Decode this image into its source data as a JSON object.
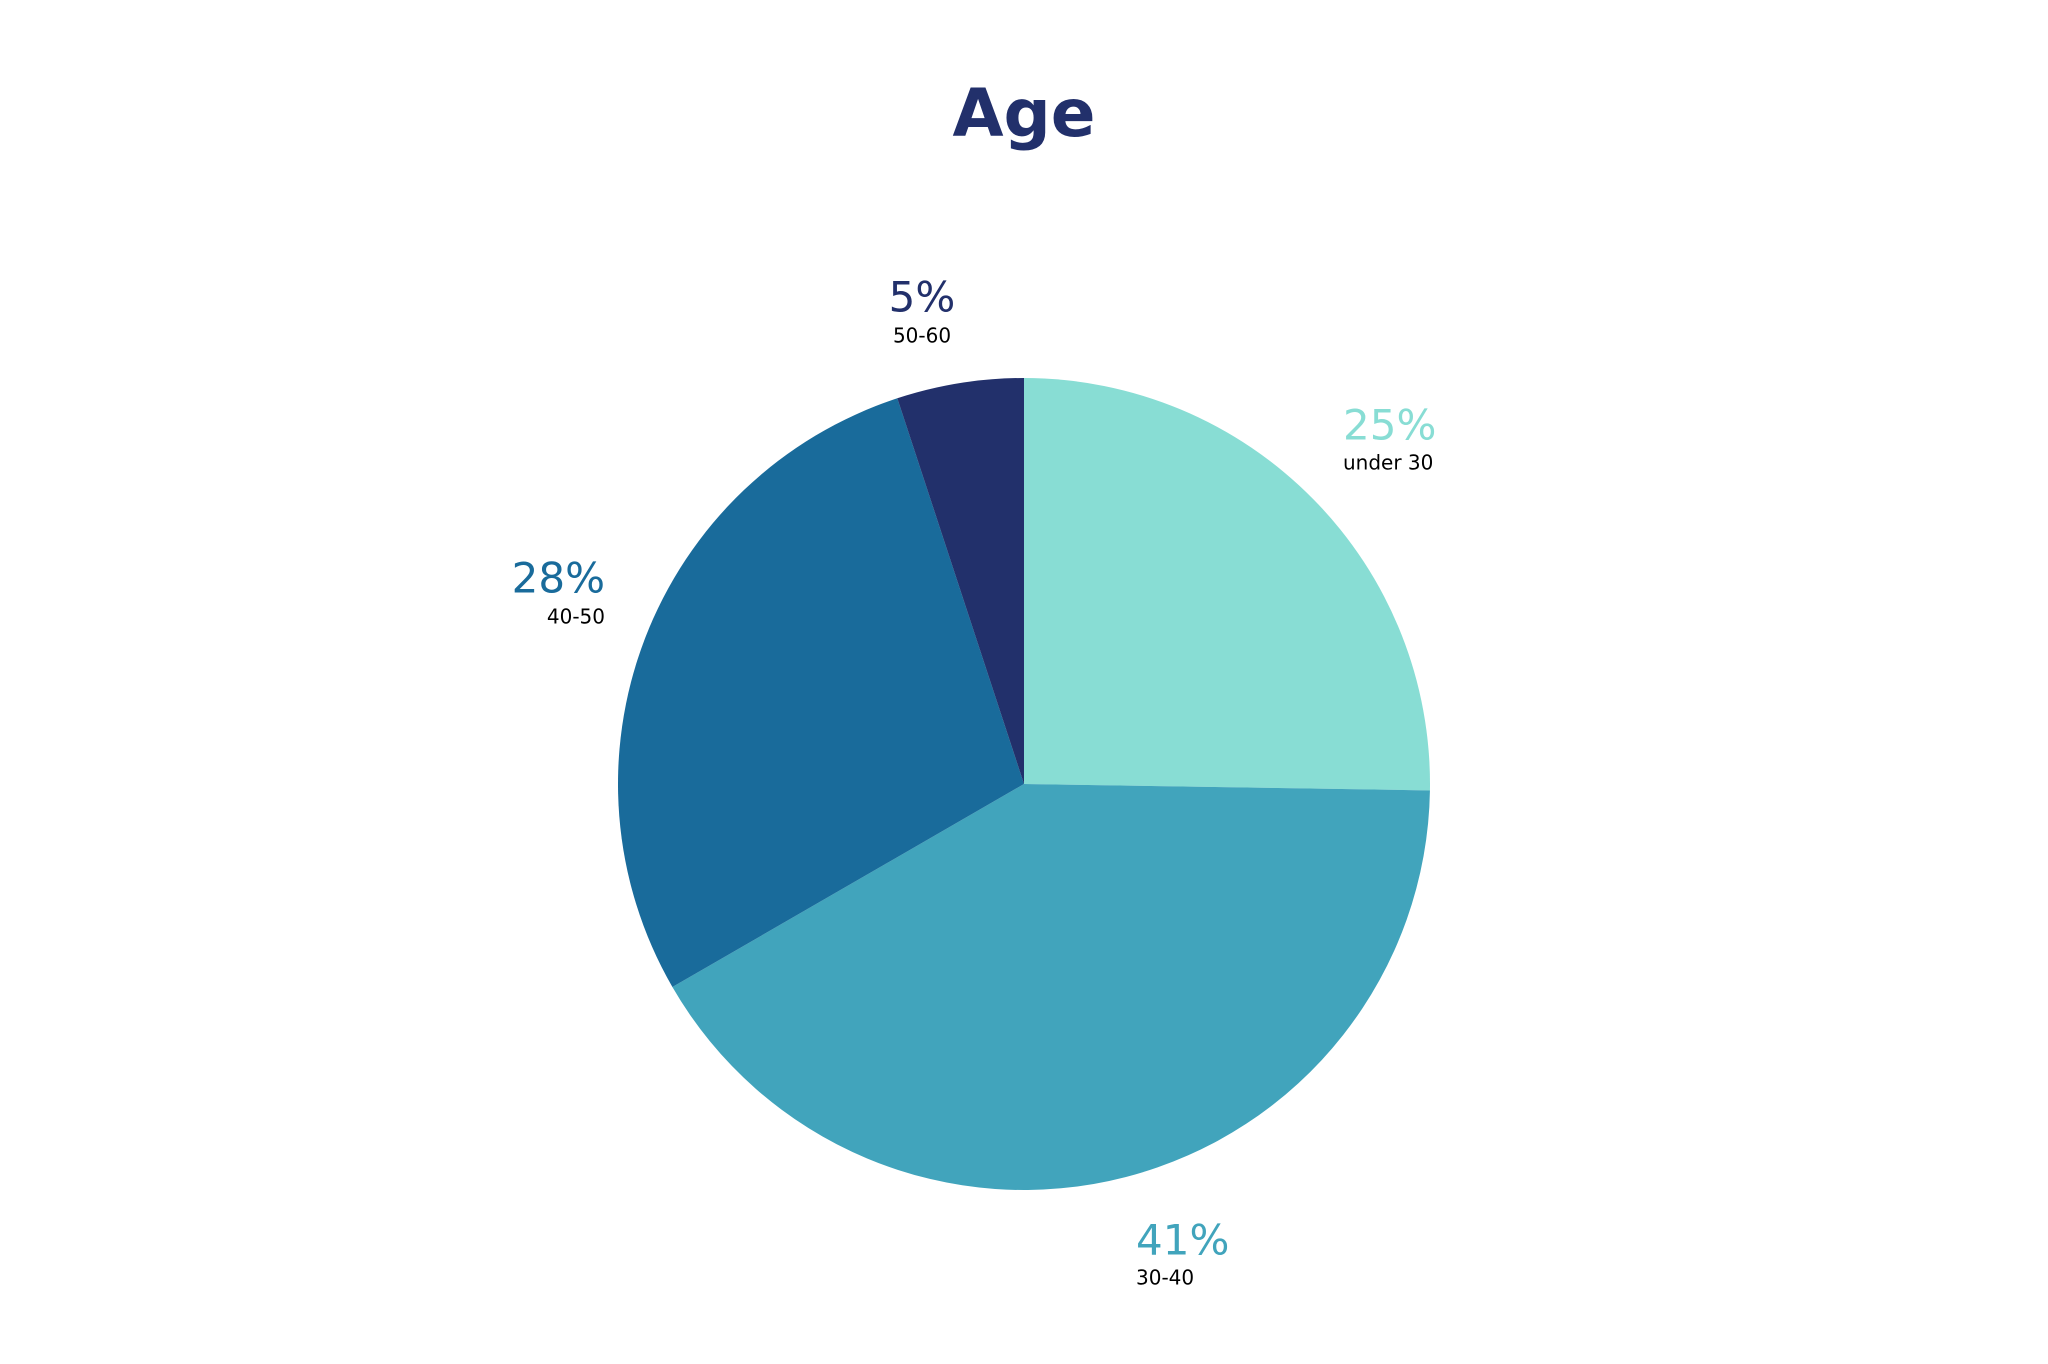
{
  "chart_data": {
    "type": "pie",
    "title": "Age",
    "categories": [
      "under 30",
      "30-40",
      "40-50",
      "50-60"
    ],
    "values": [
      25,
      41,
      28,
      5
    ],
    "value_labels": [
      "25%",
      "41%",
      "28%",
      "5%"
    ],
    "colors": [
      "#88ddd4",
      "#41a4bc",
      "#196b9b",
      "#22306b"
    ]
  }
}
